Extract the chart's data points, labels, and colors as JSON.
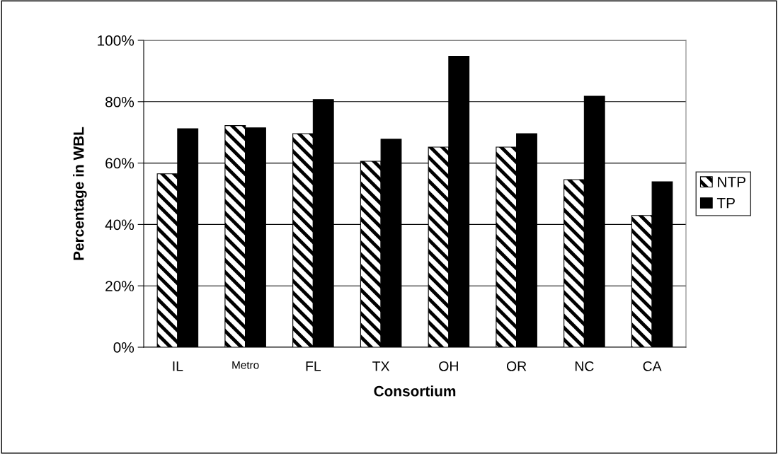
{
  "chart_data": {
    "type": "bar",
    "xlabel": "Consortium",
    "ylabel": "Percentage in WBL",
    "categories": [
      "IL",
      "Metro",
      "FL",
      "TX",
      "OH",
      "OR",
      "NC",
      "CA"
    ],
    "series": [
      {
        "name": "NTP",
        "color": "#000000",
        "values": [
          56.5,
          72.2,
          69.6,
          60.6,
          65.2,
          65.2,
          54.6,
          42.9
        ]
      },
      {
        "name": "TP",
        "color": "#000000",
        "values": [
          71.2,
          71.5,
          80.7,
          67.8,
          94.8,
          69.6,
          81.8,
          53.9
        ]
      }
    ],
    "ylim": [
      0,
      100
    ],
    "yticks": [
      {
        "value": 0,
        "label": "0%"
      },
      {
        "value": 20,
        "label": "20%"
      },
      {
        "value": 40,
        "label": "40%"
      },
      {
        "value": 60,
        "label": "60%"
      },
      {
        "value": 80,
        "label": "80%"
      },
      {
        "value": 100,
        "label": "100%"
      }
    ],
    "grid": "y",
    "legend": "right"
  }
}
